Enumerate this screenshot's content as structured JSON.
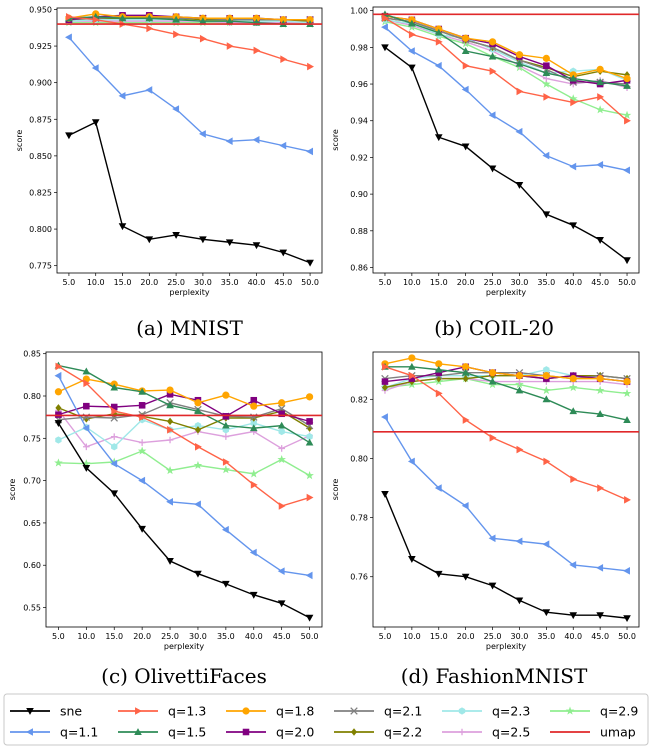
{
  "colors": {
    "sne": "#000000",
    "q=1.1": "#6495ED",
    "q=1.3": "#FF6347",
    "q=1.5": "#2E8B57",
    "q=1.8": "#FFA500",
    "q=2.0": "#800080",
    "q=2.1": "#808080",
    "q=2.2": "#808000",
    "q=2.3": "#A0E8E8",
    "q=2.5": "#DDA0DD",
    "q=2.9": "#90EE90",
    "umap": "#E0282A"
  },
  "markers": {
    "sne": "triangle-down",
    "q=1.1": "triangle-left",
    "q=1.3": "triangle-right",
    "q=1.5": "triangle-up",
    "q=1.8": "circle",
    "q=2.0": "square",
    "q=2.1": "x",
    "q=2.2": "diamond",
    "q=2.3": "hexagon",
    "q=2.5": "plus",
    "q=2.9": "star",
    "umap": "none"
  },
  "legend": {
    "entries": [
      "sne",
      "q=1.3",
      "q=1.8",
      "q=2.1",
      "q=2.3",
      "q=2.9",
      "q=1.1",
      "q=1.5",
      "q=2.0",
      "q=2.2",
      "q=2.5",
      "umap"
    ]
  },
  "chart_data": [
    {
      "type": "line",
      "caption": "(a) MNIST",
      "xlabel": "perplexity",
      "ylabel": "score",
      "x": [
        5.0,
        10.0,
        15.0,
        20.0,
        25.0,
        30.0,
        35.0,
        40.0,
        45.0,
        50.0
      ],
      "xticks": [
        "5.0",
        "10.0",
        "15.0",
        "20.0",
        "25.0",
        "30.0",
        "35.0",
        "40.0",
        "45.0",
        "50.0"
      ],
      "ylim": [
        0.77,
        0.951
      ],
      "yticks": [
        0.775,
        0.8,
        0.825,
        0.85,
        0.875,
        0.9,
        0.925,
        0.95
      ],
      "ytick_labels": [
        "0.775",
        "0.800",
        "0.825",
        "0.850",
        "0.875",
        "0.900",
        "0.925",
        "0.950"
      ],
      "hline": {
        "name": "umap",
        "value": 0.94
      },
      "series": [
        {
          "name": "sne",
          "values": [
            0.864,
            0.873,
            0.802,
            0.793,
            0.796,
            0.793,
            0.791,
            0.789,
            0.784,
            0.777
          ]
        },
        {
          "name": "q=1.1",
          "values": [
            0.931,
            0.91,
            0.891,
            0.895,
            0.882,
            0.865,
            0.86,
            0.861,
            0.857,
            0.853
          ]
        },
        {
          "name": "q=1.3",
          "values": [
            0.945,
            0.943,
            0.94,
            0.937,
            0.933,
            0.93,
            0.925,
            0.922,
            0.916,
            0.911
          ]
        },
        {
          "name": "q=1.5",
          "values": [
            0.944,
            0.945,
            0.944,
            0.944,
            0.943,
            0.942,
            0.942,
            0.941,
            0.94,
            0.94
          ]
        },
        {
          "name": "q=1.8",
          "values": [
            0.944,
            0.947,
            0.945,
            0.945,
            0.945,
            0.944,
            0.944,
            0.944,
            0.943,
            0.943
          ]
        },
        {
          "name": "q=2.0",
          "values": [
            0.943,
            0.945,
            0.946,
            0.946,
            0.945,
            0.944,
            0.944,
            0.944,
            0.943,
            0.943
          ]
        },
        {
          "name": "q=2.1",
          "values": [
            0.943,
            0.944,
            0.945,
            0.945,
            0.944,
            0.944,
            0.943,
            0.943,
            0.943,
            0.943
          ]
        },
        {
          "name": "q=2.2",
          "values": [
            0.943,
            0.944,
            0.944,
            0.944,
            0.944,
            0.943,
            0.943,
            0.943,
            0.943,
            0.942
          ]
        },
        {
          "name": "q=2.3",
          "values": [
            0.942,
            0.943,
            0.943,
            0.943,
            0.943,
            0.942,
            0.942,
            0.942,
            0.942,
            0.941
          ]
        },
        {
          "name": "q=2.5",
          "values": [
            0.942,
            0.942,
            0.942,
            0.942,
            0.942,
            0.942,
            0.941,
            0.941,
            0.941,
            0.941
          ]
        },
        {
          "name": "q=2.9",
          "values": [
            0.941,
            0.941,
            0.941,
            0.941,
            0.941,
            0.941,
            0.941,
            0.941,
            0.94,
            0.94
          ]
        }
      ]
    },
    {
      "type": "line",
      "caption": "(b) COIL-20",
      "xlabel": "perplexity",
      "ylabel": "score",
      "x": [
        5.0,
        10.0,
        15.0,
        20.0,
        25.0,
        30.0,
        35.0,
        40.0,
        45.0,
        50.0
      ],
      "xticks": [
        "5.0",
        "10.0",
        "15.0",
        "20.0",
        "25.0",
        "30.0",
        "35.0",
        "40.0",
        "45.0",
        "50.0"
      ],
      "ylim": [
        0.857,
        1.002
      ],
      "yticks": [
        0.86,
        0.88,
        0.9,
        0.92,
        0.94,
        0.96,
        0.98,
        1.0
      ],
      "ytick_labels": [
        "0.86",
        "0.88",
        "0.90",
        "0.92",
        "0.94",
        "0.96",
        "0.98",
        "1.00"
      ],
      "hline": {
        "name": "umap",
        "value": 0.998
      },
      "series": [
        {
          "name": "sne",
          "values": [
            0.98,
            0.969,
            0.931,
            0.926,
            0.914,
            0.905,
            0.889,
            0.883,
            0.875,
            0.864
          ]
        },
        {
          "name": "q=1.1",
          "values": [
            0.991,
            0.978,
            0.97,
            0.957,
            0.943,
            0.934,
            0.921,
            0.915,
            0.916,
            0.913
          ]
        },
        {
          "name": "q=1.3",
          "values": [
            0.996,
            0.987,
            0.983,
            0.97,
            0.967,
            0.956,
            0.953,
            0.95,
            0.953,
            0.94
          ]
        },
        {
          "name": "q=1.5",
          "values": [
            0.998,
            0.993,
            0.988,
            0.978,
            0.975,
            0.971,
            0.966,
            0.963,
            0.961,
            0.959
          ]
        },
        {
          "name": "q=1.8",
          "values": [
            0.997,
            0.995,
            0.99,
            0.985,
            0.983,
            0.976,
            0.974,
            0.965,
            0.968,
            0.963
          ]
        },
        {
          "name": "q=2.0",
          "values": [
            0.997,
            0.995,
            0.99,
            0.985,
            0.982,
            0.975,
            0.97,
            0.962,
            0.96,
            0.962
          ]
        },
        {
          "name": "q=2.1",
          "values": [
            0.996,
            0.994,
            0.989,
            0.984,
            0.98,
            0.973,
            0.968,
            0.961,
            0.961,
            0.96
          ]
        },
        {
          "name": "q=2.2",
          "values": [
            0.996,
            0.994,
            0.989,
            0.984,
            0.98,
            0.973,
            0.969,
            0.964,
            0.967,
            0.965
          ]
        },
        {
          "name": "q=2.3",
          "values": [
            0.995,
            0.993,
            0.987,
            0.985,
            0.979,
            0.972,
            0.966,
            0.967,
            0.968,
            0.962
          ]
        },
        {
          "name": "q=2.5",
          "values": [
            0.995,
            0.992,
            0.987,
            0.983,
            0.978,
            0.97,
            0.963,
            0.96,
            0.962,
            0.958
          ]
        },
        {
          "name": "q=2.9",
          "values": [
            0.994,
            0.991,
            0.986,
            0.982,
            0.975,
            0.969,
            0.96,
            0.952,
            0.946,
            0.943
          ]
        }
      ]
    },
    {
      "type": "line",
      "caption": "(c) OlivettiFaces",
      "xlabel": "perplexity",
      "ylabel": "score",
      "x": [
        5.0,
        10.0,
        15.0,
        20.0,
        25.0,
        30.0,
        35.0,
        40.0,
        45.0,
        50.0
      ],
      "xticks": [
        "5.0",
        "10.0",
        "15.0",
        "20.0",
        "25.0",
        "30.0",
        "35.0",
        "40.0",
        "45.0",
        "50.0"
      ],
      "ylim": [
        0.527,
        0.852
      ],
      "yticks": [
        0.55,
        0.6,
        0.65,
        0.7,
        0.75,
        0.8,
        0.85
      ],
      "ytick_labels": [
        "0.55",
        "0.60",
        "0.65",
        "0.70",
        "0.75",
        "0.80",
        "0.85"
      ],
      "hline": {
        "name": "umap",
        "value": 0.777
      },
      "series": [
        {
          "name": "sne",
          "values": [
            0.768,
            0.715,
            0.685,
            0.643,
            0.605,
            0.59,
            0.578,
            0.565,
            0.555,
            0.538
          ]
        },
        {
          "name": "q=1.1",
          "values": [
            0.824,
            0.762,
            0.72,
            0.7,
            0.675,
            0.672,
            0.642,
            0.615,
            0.593,
            0.588
          ]
        },
        {
          "name": "q=1.3",
          "values": [
            0.835,
            0.815,
            0.782,
            0.775,
            0.76,
            0.74,
            0.722,
            0.695,
            0.67,
            0.68
          ]
        },
        {
          "name": "q=1.5",
          "values": [
            0.836,
            0.829,
            0.81,
            0.805,
            0.789,
            0.782,
            0.765,
            0.762,
            0.765,
            0.745
          ]
        },
        {
          "name": "q=1.8",
          "values": [
            0.805,
            0.82,
            0.814,
            0.806,
            0.807,
            0.792,
            0.801,
            0.788,
            0.792,
            0.799
          ]
        },
        {
          "name": "q=2.0",
          "values": [
            0.778,
            0.788,
            0.787,
            0.789,
            0.802,
            0.795,
            0.776,
            0.795,
            0.779,
            0.77
          ]
        },
        {
          "name": "q=2.1",
          "values": [
            0.772,
            0.775,
            0.774,
            0.778,
            0.792,
            0.784,
            0.776,
            0.775,
            0.785,
            0.765
          ]
        },
        {
          "name": "q=2.2",
          "values": [
            0.786,
            0.773,
            0.779,
            0.776,
            0.77,
            0.76,
            0.774,
            0.774,
            0.782,
            0.762
          ]
        },
        {
          "name": "q=2.3",
          "values": [
            0.748,
            0.763,
            0.74,
            0.772,
            0.76,
            0.765,
            0.76,
            0.768,
            0.758,
            0.752
          ]
        },
        {
          "name": "q=2.5",
          "values": [
            0.783,
            0.74,
            0.752,
            0.745,
            0.748,
            0.758,
            0.752,
            0.758,
            0.738,
            0.753
          ]
        },
        {
          "name": "q=2.9",
          "values": [
            0.721,
            0.72,
            0.722,
            0.735,
            0.712,
            0.718,
            0.713,
            0.708,
            0.725,
            0.706
          ]
        }
      ]
    },
    {
      "type": "line",
      "caption": "(d) FashionMNIST",
      "xlabel": "perplexity",
      "ylabel": "score",
      "x": [
        5.0,
        10.0,
        15.0,
        20.0,
        25.0,
        30.0,
        35.0,
        40.0,
        45.0,
        50.0
      ],
      "xticks": [
        "5.0",
        "10.0",
        "15.0",
        "20.0",
        "25.0",
        "30.0",
        "35.0",
        "40.0",
        "45.0",
        "50.0"
      ],
      "ylim": [
        0.743,
        0.836
      ],
      "yticks": [
        0.76,
        0.78,
        0.8,
        0.82
      ],
      "ytick_labels": [
        "0.76",
        "0.78",
        "0.80",
        "0.82"
      ],
      "hline": {
        "name": "umap",
        "value": 0.809
      },
      "series": [
        {
          "name": "sne",
          "values": [
            0.788,
            0.766,
            0.761,
            0.76,
            0.757,
            0.752,
            0.748,
            0.747,
            0.747,
            0.746
          ]
        },
        {
          "name": "q=1.1",
          "values": [
            0.814,
            0.799,
            0.79,
            0.784,
            0.773,
            0.772,
            0.771,
            0.764,
            0.763,
            0.762
          ]
        },
        {
          "name": "q=1.3",
          "values": [
            0.831,
            0.828,
            0.822,
            0.813,
            0.807,
            0.803,
            0.799,
            0.793,
            0.79,
            0.786
          ]
        },
        {
          "name": "q=1.5",
          "values": [
            0.831,
            0.831,
            0.83,
            0.829,
            0.826,
            0.823,
            0.82,
            0.816,
            0.815,
            0.813
          ]
        },
        {
          "name": "q=1.8",
          "values": [
            0.832,
            0.834,
            0.832,
            0.831,
            0.829,
            0.828,
            0.828,
            0.827,
            0.827,
            0.826
          ]
        },
        {
          "name": "q=2.0",
          "values": [
            0.826,
            0.827,
            0.829,
            0.831,
            0.829,
            0.828,
            0.827,
            0.828,
            0.827,
            0.826
          ]
        },
        {
          "name": "q=2.1",
          "values": [
            0.827,
            0.828,
            0.828,
            0.829,
            0.829,
            0.829,
            0.828,
            0.827,
            0.828,
            0.827
          ]
        },
        {
          "name": "q=2.2",
          "values": [
            0.824,
            0.826,
            0.827,
            0.827,
            0.828,
            0.828,
            0.827,
            0.828,
            0.828,
            0.827
          ]
        },
        {
          "name": "q=2.3",
          "values": [
            0.824,
            0.827,
            0.828,
            0.828,
            0.828,
            0.828,
            0.83,
            0.828,
            0.827,
            0.826
          ]
        },
        {
          "name": "q=2.5",
          "values": [
            0.823,
            0.826,
            0.827,
            0.827,
            0.826,
            0.826,
            0.826,
            0.826,
            0.826,
            0.825
          ]
        },
        {
          "name": "q=2.9",
          "values": [
            0.824,
            0.825,
            0.826,
            0.827,
            0.825,
            0.825,
            0.823,
            0.824,
            0.823,
            0.822
          ]
        }
      ]
    }
  ]
}
